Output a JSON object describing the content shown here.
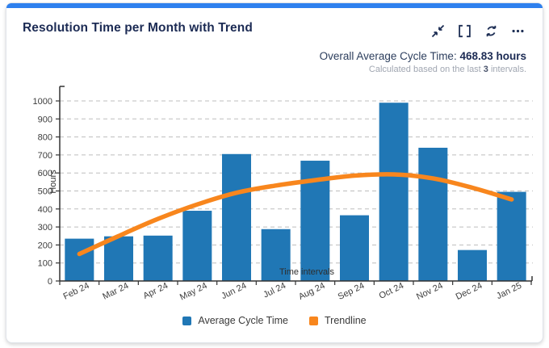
{
  "widget": {
    "title": "Resolution Time per Month with Trend",
    "accent_color": "#2e80ee",
    "icon_color": "#1e2f55",
    "toolbar_icons": [
      "collapse-icon",
      "fullscreen-icon",
      "refresh-icon",
      "more-options-icon"
    ]
  },
  "summary": {
    "label": "Overall Average Cycle Time: ",
    "value": "468.83 hours",
    "note_prefix": "Calculated based on the last ",
    "note_bold": "3",
    "note_suffix": " intervals."
  },
  "chart_data": {
    "type": "bar",
    "title": "",
    "categories": [
      "Feb 24",
      "Mar 24",
      "Apr 24",
      "May 24",
      "Jun 24",
      "Jul 24",
      "Aug 24",
      "Sep 24",
      "Oct 24",
      "Nov 24",
      "Dec 24",
      "Jan 25"
    ],
    "series": [
      {
        "name": "Average Cycle Time",
        "type": "bar",
        "color": "#2077b5",
        "values": [
          235,
          248,
          252,
          390,
          705,
          288,
          668,
          365,
          990,
          740,
          172,
          495
        ]
      },
      {
        "name": "Trendline",
        "type": "line",
        "color": "#f8861d",
        "values": [
          150,
          250,
          345,
          425,
          490,
          530,
          560,
          585,
          592,
          570,
          518,
          453
        ]
      }
    ],
    "xlabel": "Time intervals",
    "ylabel": "Hours",
    "ylim": [
      0,
      1000
    ],
    "yticks": [
      0,
      100,
      200,
      300,
      400,
      500,
      600,
      700,
      800,
      900,
      1000
    ],
    "grid": "dashed-horizontal",
    "legend_position": "bottom"
  }
}
